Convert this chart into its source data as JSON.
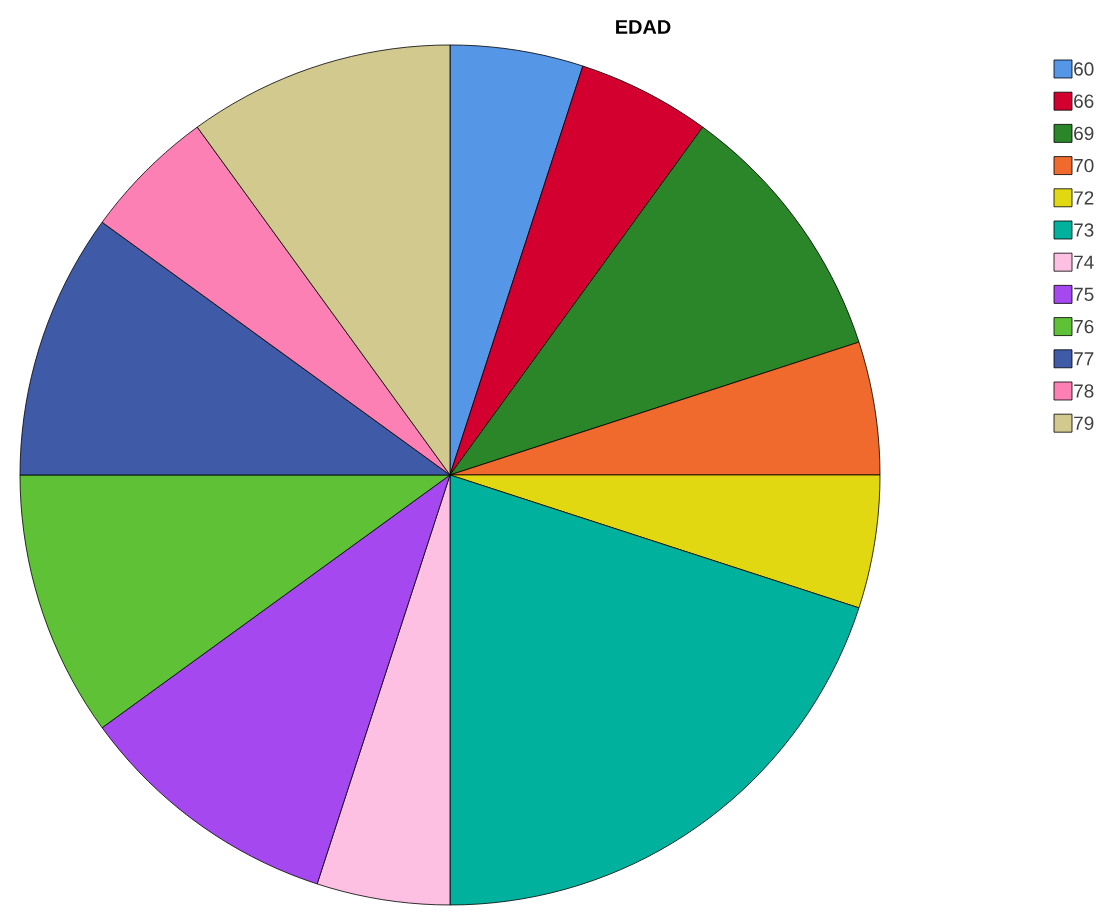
{
  "chart_data": {
    "type": "pie",
    "title": "EDAD",
    "categories": [
      "60",
      "66",
      "69",
      "70",
      "72",
      "73",
      "74",
      "75",
      "76",
      "77",
      "78",
      "79"
    ],
    "values": [
      5,
      5,
      10,
      5,
      5,
      20,
      5,
      10,
      10,
      10,
      5,
      10
    ],
    "colors": [
      "#5596e6",
      "#d3002f",
      "#2a8629",
      "#f0692d",
      "#e2d811",
      "#00b29e",
      "#fdc0e3",
      "#a648f0",
      "#5fc236",
      "#3f5ba8",
      "#fd80b4",
      "#d1c98e"
    ],
    "legend": "right"
  }
}
